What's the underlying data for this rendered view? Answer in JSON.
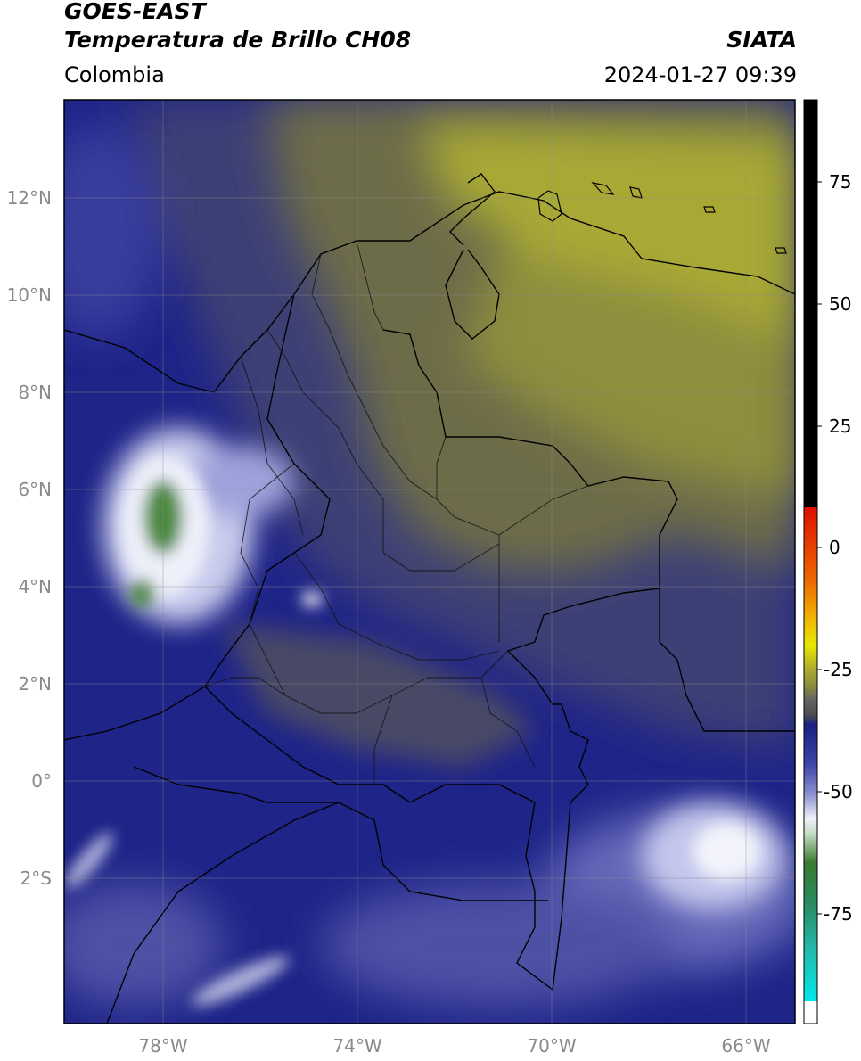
{
  "header": {
    "satellite": "GOES-EAST",
    "product": "Temperatura de Brillo CH08",
    "organization": "SIATA",
    "region": "Colombia",
    "timestamp": "2024-01-27 09:39"
  },
  "axes": {
    "lat_ticks": [
      {
        "value": 12,
        "label": "12°N"
      },
      {
        "value": 10,
        "label": "10°N"
      },
      {
        "value": 8,
        "label": "8°N"
      },
      {
        "value": 6,
        "label": "6°N"
      },
      {
        "value": 4,
        "label": "4°N"
      },
      {
        "value": 2,
        "label": "2°N"
      },
      {
        "value": 0,
        "label": "0°"
      },
      {
        "value": -2,
        "label": "2°S"
      }
    ],
    "lon_ticks": [
      {
        "value": -78,
        "label": "78°W"
      },
      {
        "value": -74,
        "label": "74°W"
      },
      {
        "value": -70,
        "label": "70°W"
      },
      {
        "value": -66,
        "label": "66°W"
      }
    ]
  },
  "colorbar": {
    "ticks": [
      {
        "value": 75,
        "label": "75"
      },
      {
        "value": 50,
        "label": "50"
      },
      {
        "value": 25,
        "label": "25"
      },
      {
        "value": 0,
        "label": "0"
      },
      {
        "value": -25,
        "label": "-25"
      },
      {
        "value": -50,
        "label": "-50"
      },
      {
        "value": -75,
        "label": "-75"
      }
    ],
    "colors": {
      "high": "#000000",
      "warm": "#dd1100",
      "dry": "#b9b91e",
      "moist": "#1b1f8a",
      "cold": "#ffffff",
      "very_cold": "#3c8a3c",
      "extreme": "#1fd3c8"
    }
  }
}
